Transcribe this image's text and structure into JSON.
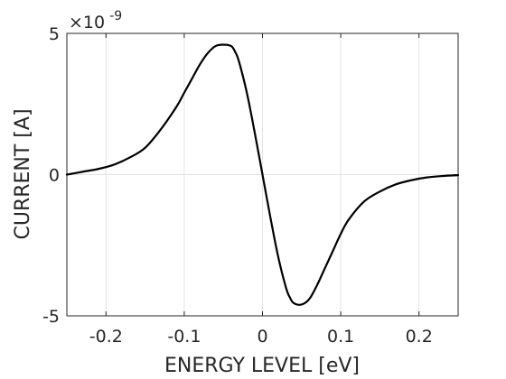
{
  "chart_data": {
    "type": "line",
    "xlabel": "ENERGY LEVEL  [eV]",
    "ylabel": "CURRENT   [A]",
    "y_exponent_base": "×10",
    "y_exponent_power": "-9",
    "xlim": [
      -0.25,
      0.25
    ],
    "ylim": [
      -5,
      5
    ],
    "x_ticks": [
      -0.2,
      -0.1,
      0,
      0.1,
      0.2
    ],
    "x_tick_labels": [
      "-0.2",
      "-0.1",
      "0",
      "0.1",
      "0.2"
    ],
    "y_ticks": [
      -5,
      0,
      5
    ],
    "y_tick_labels": [
      "-5",
      "0",
      "5"
    ],
    "grid": true,
    "series": [
      {
        "color": "#000000",
        "x": [
          -0.25,
          -0.23,
          -0.21,
          -0.19,
          -0.17,
          -0.15,
          -0.13,
          -0.11,
          -0.1,
          -0.09,
          -0.08,
          -0.07,
          -0.06,
          -0.05,
          -0.04,
          -0.035,
          -0.03,
          -0.02,
          -0.01,
          0,
          0.01,
          0.02,
          0.03,
          0.035,
          0.04,
          0.05,
          0.06,
          0.07,
          0.08,
          0.09,
          0.1,
          0.11,
          0.13,
          0.15,
          0.17,
          0.19,
          0.21,
          0.23,
          0.25
        ],
        "y": [
          0.0,
          0.1,
          0.2,
          0.35,
          0.6,
          0.95,
          1.6,
          2.4,
          2.9,
          3.4,
          3.9,
          4.3,
          4.55,
          4.6,
          4.55,
          4.35,
          4.0,
          2.9,
          1.5,
          0.0,
          -1.5,
          -2.9,
          -4.0,
          -4.35,
          -4.55,
          -4.6,
          -4.4,
          -3.9,
          -3.3,
          -2.7,
          -2.1,
          -1.6,
          -0.95,
          -0.6,
          -0.35,
          -0.2,
          -0.1,
          -0.05,
          -0.02
        ]
      }
    ]
  }
}
